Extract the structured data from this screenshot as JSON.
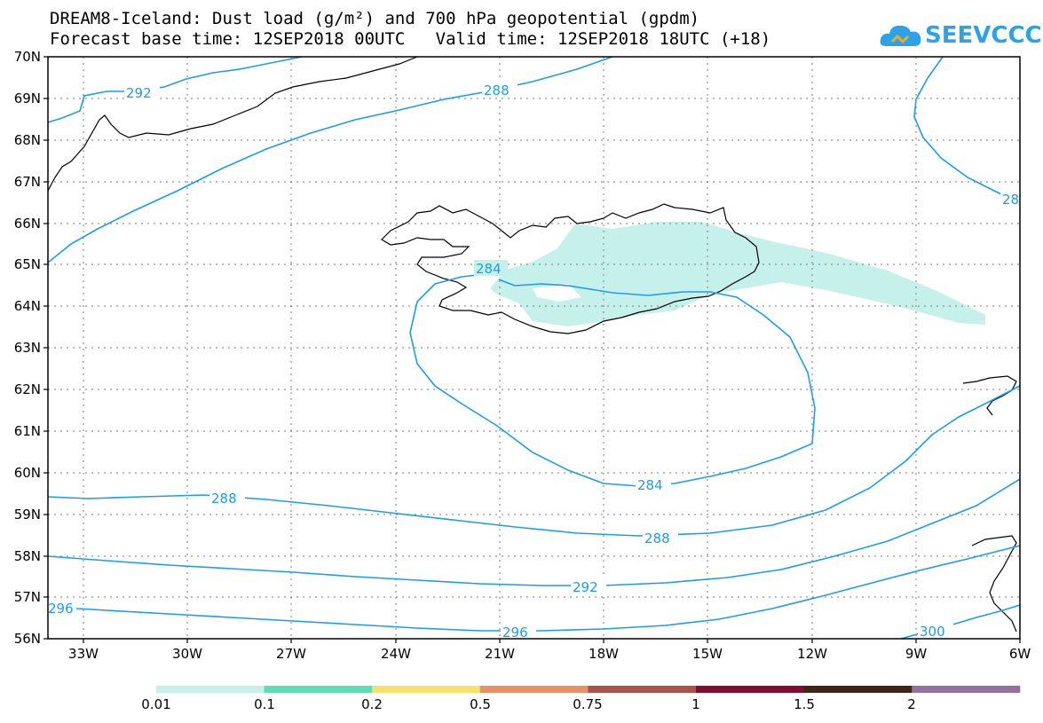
{
  "header": {
    "line1": "DREAM8-Iceland: Dust load (g/m²) and 700 hPa geopotential (gpdm)",
    "line2": "Forecast base time: 12SEP2018 00UTC   Valid time: 12SEP2018 18UTC (+18)"
  },
  "logo": {
    "text": "SEEVCCC",
    "icon": "cloud-icon"
  },
  "map": {
    "lat_labels": [
      "70N",
      "69N",
      "68N",
      "67N",
      "66N",
      "65N",
      "64N",
      "63N",
      "62N",
      "61N",
      "60N",
      "59N",
      "58N",
      "57N",
      "56N"
    ],
    "lon_labels": [
      "33W",
      "30W",
      "27W",
      "24W",
      "21W",
      "18W",
      "15W",
      "12W",
      "9W",
      "6W"
    ],
    "contour_labels": [
      "292",
      "288",
      "284",
      "284",
      "288",
      "288",
      "292",
      "296",
      "296",
      "300",
      "28"
    ],
    "contour_color": "#1a9cf0",
    "dust_color": "#c6f0ea"
  },
  "colorbar": {
    "colors": [
      "#c6f0ea",
      "#5fdcb6",
      "#f6e06e",
      "#e8906a",
      "#a9534c",
      "#820d31",
      "#3e2716",
      "#93709e"
    ],
    "labels": [
      "0.01",
      "0.1",
      "0.2",
      "0.5",
      "0.75",
      "1",
      "1.5",
      "2"
    ]
  }
}
